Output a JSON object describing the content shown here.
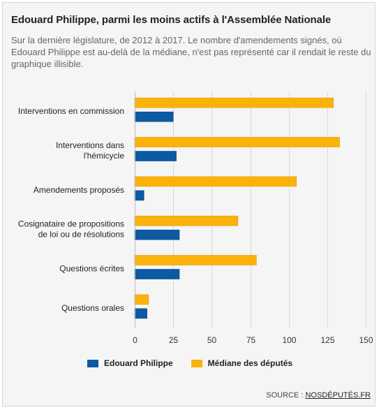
{
  "title": "Edouard Philippe, parmi les moins actifs à l'Assemblée Nationale",
  "subtitle": "Sur la dernière législature, de 2012 à 2017. Le nombre d'amendements signés, où Edouard Philippe est au-delà de la médiane, n'est pas représenté car il rendait le reste du graphique illisible.",
  "colors": {
    "philippe": "#0b5aa2",
    "median": "#fbb30b",
    "grid": "#d7d7d7"
  },
  "source": {
    "label": "SOURCE : ",
    "link": "NOSDÉPUTÉS.FR"
  },
  "chart_data": {
    "type": "bar",
    "orientation": "horizontal",
    "categories": [
      "Interventions en commission",
      "Interventions dans l'hémicycle",
      "Amendements proposés",
      "Cosignataire de propositions de loi ou de résolutions",
      "Questions écrites",
      "Questions orales"
    ],
    "category_lines": [
      [
        "Interventions en commission"
      ],
      [
        "Interventions dans",
        "l'hémicycle"
      ],
      [
        "Amendements proposés"
      ],
      [
        "Cosignataire de propositions",
        "de loi ou de résolutions"
      ],
      [
        "Questions écrites"
      ],
      [
        "Questions orales"
      ]
    ],
    "series": [
      {
        "name": "Médiane des députés",
        "color": "#fbb30b",
        "values": [
          129,
          133,
          105,
          67,
          79,
          9
        ]
      },
      {
        "name": "Edouard Philippe",
        "color": "#0b5aa2",
        "values": [
          25,
          27,
          6,
          29,
          29,
          8
        ]
      }
    ],
    "legend_order": [
      "Edouard Philippe",
      "Médiane des députés"
    ],
    "xlim": [
      0,
      150
    ],
    "xticks": [
      0,
      25,
      50,
      75,
      100,
      125,
      150
    ],
    "grid": true,
    "legend_position": "bottom"
  }
}
